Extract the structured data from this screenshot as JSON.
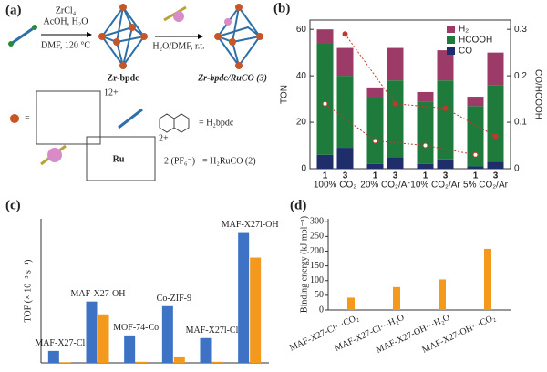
{
  "scheme": {
    "label": "(a)",
    "reagents": [
      "ZrCl₄",
      "AcOH, H₂O",
      "DMF, 120 °C"
    ],
    "step2": "H₂O/DMF, r.t.",
    "product1": "Zr-bpdc",
    "product2": "Zr-bpdc/RuCO (3)",
    "charge_cluster": "12+",
    "linker_eq": "= H₂bpdc",
    "charge_ru": "2+",
    "counterion": "2 (PF₆⁻)",
    "ru_eq": "= H₂RuCO (2)",
    "ru": "Ru"
  },
  "chart_data": [
    {
      "type": "stacked-bar",
      "label": "(b)",
      "ylabel": "TON",
      "y2label": "CO/HCOOH",
      "categories": [
        "1",
        "3",
        "1",
        "3",
        "1",
        "3",
        "1",
        "3"
      ],
      "groups": [
        "100% CO₂",
        "20% CO₂/Ar",
        "10% CO₂/Ar",
        "5% CO₂/Ar"
      ],
      "series": [
        {
          "name": "CO",
          "color": "#1f2d6b",
          "values": [
            6,
            9,
            2,
            5,
            2,
            4,
            1,
            3
          ]
        },
        {
          "name": "HCOOH",
          "color": "#1e7b3c",
          "values": [
            48,
            31,
            29,
            33,
            27,
            34,
            26,
            33
          ]
        },
        {
          "name": "H₂",
          "color": "#9c3b68",
          "values": [
            6,
            12,
            4,
            14,
            4,
            13,
            4,
            14
          ]
        }
      ],
      "ratio_series": [
        {
          "color": "#c0392b",
          "values": [
            0.14,
            0.06,
            0.05,
            0.03
          ]
        },
        {
          "color": "#c0392b",
          "values": [
            0.29,
            0.14,
            0.13,
            0.07
          ]
        }
      ],
      "ylim": [
        0,
        64
      ],
      "yticks": [
        0,
        20,
        40,
        60
      ],
      "y2lim": [
        0,
        0.32
      ],
      "y2ticks": [
        0,
        0.1,
        0.2,
        0.3
      ]
    },
    {
      "type": "grouped-bar",
      "label": "(c)",
      "ylabel": "TOF (× 10⁻³ s⁻¹)",
      "categories": [
        "MAF-X27-Cl",
        "MAF-X27-OH",
        "MOF-74-Co",
        "Co-ZIF-9",
        "MAF-X27l-Cl",
        "MAF-X27l-OH"
      ],
      "series": [
        {
          "color": "#3d72c4",
          "values": [
            5.4,
            27.7,
            12.4,
            25.6,
            11.2,
            59
          ]
        },
        {
          "color": "#f39a1e",
          "values": [
            0.3,
            21.9,
            0.5,
            2.5,
            0.5,
            47.5
          ]
        }
      ],
      "ylim": [
        0,
        65
      ]
    },
    {
      "type": "bar",
      "label": "(d)",
      "ylabel": "Binding energy (kJ mol⁻¹)",
      "categories": [
        "MAF-X27-Cl···CO₂",
        "MAF-X27-Cl···H₂O",
        "MAF-X27-OH···H₂O",
        "MAF-X27-OH···CO₂"
      ],
      "values": [
        42,
        78,
        104,
        208
      ],
      "color": "#f39a1e",
      "ylim": [
        0,
        310
      ],
      "yticks": [
        0,
        50,
        100,
        150,
        200,
        250,
        300
      ]
    }
  ]
}
